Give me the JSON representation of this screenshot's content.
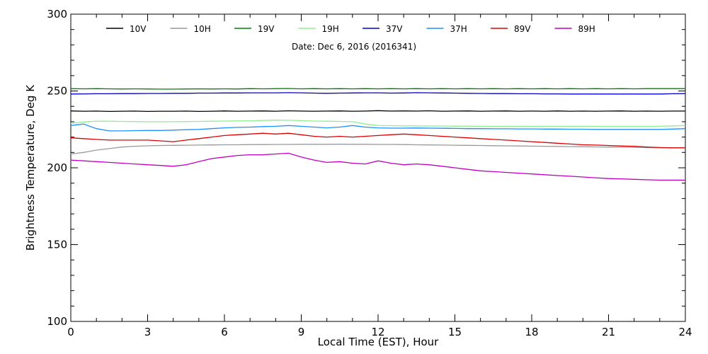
{
  "chart_data": {
    "type": "line",
    "title": "",
    "subtitle": "Date: Dec  6, 2016 (2016341)",
    "xlabel": "Local Time (EST), Hour",
    "ylabel": "Brightness Temperature, Deg K",
    "xlim": [
      0,
      24
    ],
    "ylim": [
      100,
      300
    ],
    "xticks": [
      0,
      3,
      6,
      9,
      12,
      15,
      18,
      21,
      24
    ],
    "yticks": [
      100,
      150,
      200,
      250,
      300
    ],
    "grid": false,
    "legend_position": "top",
    "x": [
      0,
      0.5,
      1,
      1.5,
      2,
      2.5,
      3,
      3.5,
      4,
      4.5,
      5,
      5.5,
      6,
      6.5,
      7,
      7.5,
      8,
      8.5,
      9,
      9.5,
      10,
      10.5,
      11,
      11.5,
      12,
      12.5,
      13,
      13.5,
      14,
      14.5,
      15,
      15.5,
      16,
      16.5,
      17,
      17.5,
      18,
      18.5,
      19,
      19.5,
      20,
      20.5,
      21,
      21.5,
      22,
      22.5,
      23,
      23.5,
      24
    ],
    "series": [
      {
        "name": "10V",
        "color": "#000000",
        "values": [
          237,
          236.8,
          236.9,
          236.7,
          236.8,
          236.9,
          236.7,
          236.8,
          236.8,
          236.9,
          236.7,
          236.8,
          237,
          236.8,
          236.9,
          237,
          236.8,
          237.1,
          236.9,
          236.8,
          236.9,
          237,
          236.8,
          236.9,
          237.2,
          236.9,
          237,
          236.9,
          237.1,
          236.8,
          236.9,
          237,
          236.8,
          236.9,
          237,
          236.8,
          236.9,
          236.8,
          237,
          236.8,
          236.9,
          236.8,
          236.9,
          237,
          236.8,
          236.9,
          236.8,
          236.9,
          236.9
        ]
      },
      {
        "name": "10H",
        "color": "#999999",
        "values": [
          209,
          210,
          211.5,
          212.5,
          213.5,
          214,
          214.3,
          214.5,
          214.6,
          214.7,
          214.8,
          214.9,
          215,
          215,
          215.1,
          215.1,
          215.2,
          215.2,
          215.3,
          215.3,
          215.3,
          215.4,
          215.3,
          215.3,
          215.2,
          215.2,
          215.1,
          215,
          214.9,
          214.8,
          214.7,
          214.6,
          214.5,
          214.4,
          214.3,
          214.2,
          214.1,
          214,
          213.9,
          213.8,
          213.7,
          213.6,
          213.5,
          213.4,
          213.3,
          213.2,
          213.1,
          213.1,
          213
        ]
      },
      {
        "name": "19V",
        "color": "#008000",
        "values": [
          251.5,
          251.4,
          251.5,
          251.4,
          251.3,
          251.4,
          251.3,
          251.2,
          251.2,
          251.3,
          251.4,
          251.3,
          251.4,
          251.3,
          251.5,
          251.4,
          251.5,
          251.6,
          251.4,
          251.5,
          251.4,
          251.5,
          251.4,
          251.5,
          251.4,
          251.5,
          251.4,
          251.5,
          251.4,
          251.5,
          251.4,
          251.5,
          251.4,
          251.5,
          251.4,
          251.5,
          251.4,
          251.5,
          251.4,
          251.5,
          251.4,
          251.5,
          251.4,
          251.5,
          251.4,
          251.5,
          251.5,
          251.5,
          251.5
        ]
      },
      {
        "name": "19H",
        "color": "#90ee90",
        "values": [
          229,
          229.8,
          230.3,
          230.3,
          230.2,
          230.1,
          230,
          230,
          230,
          230.1,
          230.2,
          230.3,
          230.4,
          230.5,
          230.6,
          230.8,
          231,
          230.9,
          230.7,
          230.4,
          230.3,
          230.2,
          230,
          228.5,
          227.5,
          227.4,
          227.3,
          227.3,
          227.2,
          227.2,
          227.1,
          227.1,
          227,
          227,
          227,
          227,
          227,
          227,
          227,
          227,
          227,
          227,
          227,
          227,
          227,
          227,
          227,
          227.3,
          227.5
        ]
      },
      {
        "name": "37V",
        "color": "#0000cd",
        "values": [
          248,
          248.1,
          248.2,
          248.2,
          248.3,
          248.3,
          248.4,
          248.4,
          248.5,
          248.5,
          248.6,
          248.6,
          248.7,
          248.7,
          248.8,
          248.8,
          248.8,
          248.9,
          248.8,
          248.6,
          248.5,
          248.6,
          248.7,
          248.8,
          248.8,
          248.6,
          248.7,
          248.9,
          248.8,
          248.7,
          248.6,
          248.5,
          248.4,
          248.3,
          248.3,
          248.2,
          248.2,
          248.1,
          248.1,
          248,
          248,
          248,
          248,
          248,
          248,
          248,
          248,
          248.2,
          248.3
        ]
      },
      {
        "name": "37H",
        "color": "#1e90ff",
        "values": [
          227.5,
          228.5,
          225.5,
          224,
          224,
          224.2,
          224.3,
          224.3,
          224.5,
          224.8,
          225,
          225.5,
          226,
          226.3,
          226.5,
          226.8,
          227,
          227.5,
          227,
          226.5,
          226,
          226.5,
          227.5,
          226.5,
          226,
          225.8,
          225.8,
          225.9,
          225.8,
          225.7,
          225.6,
          225.5,
          225.5,
          225.4,
          225.4,
          225.3,
          225.3,
          225.2,
          225.2,
          225.1,
          225.1,
          225,
          225,
          225,
          225,
          225,
          225,
          225.2,
          225.5
        ]
      },
      {
        "name": "89V",
        "color": "#dd0000",
        "values": [
          219.5,
          219,
          218.5,
          218,
          218,
          218,
          218,
          217.5,
          217,
          218,
          219,
          220,
          221,
          221.5,
          222,
          222.5,
          222,
          222.5,
          221.5,
          220.5,
          220,
          220.5,
          220,
          220.5,
          221,
          221.5,
          222,
          221.5,
          221,
          220.5,
          220,
          219.5,
          219,
          218.5,
          218,
          217.5,
          217,
          216.5,
          216,
          215.5,
          215,
          214.8,
          214.5,
          214.2,
          214,
          213.5,
          213.2,
          213,
          213
        ]
      },
      {
        "name": "89H",
        "color": "#c000c0",
        "values": [
          205,
          204.5,
          204,
          203.5,
          203,
          202.5,
          202,
          201.5,
          201,
          202,
          204,
          206,
          207,
          208,
          208.5,
          208.5,
          209,
          209.5,
          207,
          205,
          203.5,
          204,
          203,
          202.5,
          204.5,
          203,
          202,
          202.5,
          202,
          201,
          200,
          199,
          198,
          197.5,
          197,
          196.5,
          196,
          195.5,
          195,
          194.5,
          194,
          193.5,
          193,
          192.8,
          192.5,
          192.2,
          192,
          192,
          192
        ]
      }
    ]
  }
}
